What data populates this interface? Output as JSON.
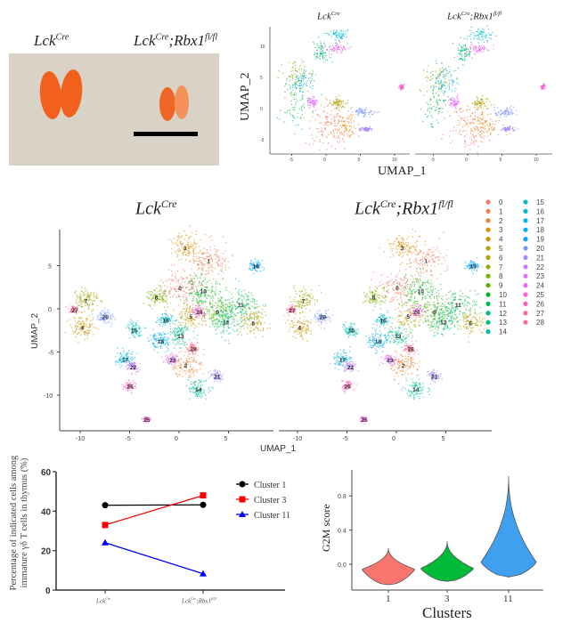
{
  "photo": {
    "label_left": {
      "base": "Lck",
      "sup": "Cre"
    },
    "label_right": {
      "base": "Lck",
      "sup": "Cre",
      "mid": ";Rbx1",
      "sup2": "fl/fl"
    },
    "background_color": "#d9d2c6",
    "organ_color": "#f2601d"
  },
  "chart_data": [
    {
      "type": "scatter",
      "panel": "top-umap",
      "facets": [
        {
          "base": "Lck",
          "sup": "Cre"
        },
        {
          "base": "Lck",
          "sup": "Cre",
          "mid": ";Rbx1",
          "sup2": "fl/fl"
        }
      ],
      "xlabel": "UMAP_1",
      "ylabel": "UMAP_2",
      "xticks": [
        "-5",
        "0",
        "5",
        "10"
      ],
      "yticks": [
        "-5",
        "0",
        "5",
        "10"
      ],
      "xlim": [
        -8,
        12
      ],
      "ylim": [
        -7,
        13.5
      ],
      "groups": [
        {
          "x": -4.5,
          "y": 4.8,
          "sx": 1.2,
          "sy": 1.4,
          "color": "#7CAE00"
        },
        {
          "x": -3.5,
          "y": 4.5,
          "sx": 1.0,
          "sy": 1.2,
          "color": "#00B0F6"
        },
        {
          "x": -4.5,
          "y": 0.5,
          "sx": 1.0,
          "sy": 1.8,
          "color": "#00BB4E"
        },
        {
          "x": 0.5,
          "y": -1.3,
          "sx": 1.6,
          "sy": 1.0,
          "color": "#F27D52"
        },
        {
          "x": 0.5,
          "y": -4.2,
          "sx": 1.6,
          "sy": 1.0,
          "color": "#F8766D"
        },
        {
          "x": 2.8,
          "y": -2.8,
          "sx": 1.0,
          "sy": 1.0,
          "color": "#DE8C00"
        },
        {
          "x": 1.8,
          "y": 0.8,
          "sx": 0.6,
          "sy": 0.5,
          "color": "#AEA200"
        },
        {
          "x": 5.5,
          "y": -0.6,
          "sx": 0.8,
          "sy": 0.4,
          "color": "#7997FF"
        },
        {
          "x": -2.0,
          "y": 1.0,
          "sx": 0.4,
          "sy": 0.4,
          "color": "#DF70F8"
        },
        {
          "x": 1.3,
          "y": 9.6,
          "sx": 0.9,
          "sy": 0.4,
          "color": "#F066EA"
        },
        {
          "x": -0.5,
          "y": 9.0,
          "sx": 0.6,
          "sy": 0.9,
          "color": "#00BE6C"
        },
        {
          "x": 1.8,
          "y": 11.8,
          "sx": 0.9,
          "sy": 0.6,
          "color": "#00BDD0"
        },
        {
          "x": 11.0,
          "y": 3.5,
          "sx": 0.15,
          "sy": 0.2,
          "color": "#FB61D7"
        },
        {
          "x": 5.8,
          "y": -3.3,
          "sx": 0.5,
          "sy": 0.2,
          "color": "#A58AFF"
        }
      ]
    },
    {
      "type": "scatter",
      "panel": "middle-umap",
      "facets": [
        {
          "base": "Lck",
          "sup": "Cre"
        },
        {
          "base": "Lck",
          "sup": "Cre",
          "mid": ";Rbx1",
          "sup2": "fl/fl"
        }
      ],
      "xlabel": "UMAP_1",
      "ylabel": "UMAP_2",
      "xticks": [
        "-10",
        "-5",
        "0",
        "5"
      ],
      "yticks": [
        "5",
        "0",
        "-5",
        "-10"
      ],
      "xlim": [
        -12,
        9.5
      ],
      "ylim": [
        -14,
        9.5
      ],
      "legend_placement": "right",
      "clusters": [
        {
          "label": "0",
          "color": "#F8766D",
          "x": 0.2,
          "y": 2.5,
          "s": 1.3
        },
        {
          "label": "1",
          "color": "#F27D52",
          "x": 3.1,
          "y": 5.6,
          "s": 1.2
        },
        {
          "label": "2",
          "color": "#EA8331",
          "x": 0.8,
          "y": -6.5,
          "s": 1.0
        },
        {
          "label": "3",
          "color": "#DE8C00",
          "x": 0.7,
          "y": 7.1,
          "s": 1.0
        },
        {
          "label": "4",
          "color": "#D09400",
          "x": -9.7,
          "y": -2.1,
          "s": 0.8
        },
        {
          "label": "5",
          "color": "#C09B00",
          "x": 1.3,
          "y": -0.8,
          "s": 0.9
        },
        {
          "label": "6",
          "color": "#AEA200",
          "x": 7.6,
          "y": -1.6,
          "s": 0.9
        },
        {
          "label": "7",
          "color": "#99A800",
          "x": -9.3,
          "y": 1.0,
          "s": 0.8
        },
        {
          "label": "8",
          "color": "#7CAE00",
          "x": -2.2,
          "y": 1.4,
          "s": 0.7
        },
        {
          "label": "9",
          "color": "#53B400",
          "x": 4.0,
          "y": -0.3,
          "s": 1.0
        },
        {
          "label": "10",
          "color": "#00B81F",
          "x": 2.4,
          "y": 2.1,
          "s": 1.2
        },
        {
          "label": "11",
          "color": "#00BB4E",
          "x": 6.2,
          "y": 0.5,
          "s": 1.2
        },
        {
          "label": "12",
          "color": "#00BE6C",
          "x": 4.7,
          "y": -1.5,
          "s": 1.0
        },
        {
          "label": "13",
          "color": "#00C086",
          "x": 0.1,
          "y": -3.1,
          "s": 0.8
        },
        {
          "label": "14",
          "color": "#00C19F",
          "x": 1.9,
          "y": -9.3,
          "s": 0.7
        },
        {
          "label": "15",
          "color": "#00C0B8",
          "x": -4.6,
          "y": -2.4,
          "s": 0.5
        },
        {
          "label": "16",
          "color": "#00BDD0",
          "x": -1.4,
          "y": -1.3,
          "s": 0.5
        },
        {
          "label": "17",
          "color": "#00B8E5",
          "x": -5.5,
          "y": -5.8,
          "s": 0.6
        },
        {
          "label": "18",
          "color": "#00B0F6",
          "x": -1.9,
          "y": -3.7,
          "s": 0.7
        },
        {
          "label": "19",
          "color": "#00A5FF",
          "x": 7.7,
          "y": 5.0,
          "s": 0.4
        },
        {
          "label": "20",
          "color": "#7997FF",
          "x": -7.5,
          "y": -0.9,
          "s": 0.5
        },
        {
          "label": "21",
          "color": "#A58AFF",
          "x": 3.8,
          "y": -7.8,
          "s": 0.4
        },
        {
          "label": "22",
          "color": "#C77CFF",
          "x": -4.7,
          "y": -6.7,
          "s": 0.4
        },
        {
          "label": "23",
          "color": "#DF70F8",
          "x": -0.7,
          "y": -5.9,
          "s": 0.4
        },
        {
          "label": "24",
          "color": "#F066EA",
          "x": 2.0,
          "y": -0.3,
          "s": 0.4
        },
        {
          "label": "25",
          "color": "#FB61D7",
          "x": -3.3,
          "y": -12.8,
          "s": 0.2
        },
        {
          "label": "26",
          "color": "#FF62BC",
          "x": -5.0,
          "y": -8.9,
          "s": 0.4
        },
        {
          "label": "27",
          "color": "#FF689F",
          "x": -10.6,
          "y": -0.1,
          "s": 0.3
        },
        {
          "label": "28",
          "color": "#FF6C91",
          "x": 1.4,
          "y": -4.6,
          "s": 0.4
        }
      ]
    },
    {
      "type": "line",
      "panel": "cluster-percentage",
      "ylabel": [
        "Percentage of indicated cells among",
        "immature γδ T cells in thymus (%)"
      ],
      "categories": [
        {
          "base": "Lck",
          "sup": "Cre"
        },
        {
          "base": "Lck",
          "sup": "Cre",
          "mid": ";Rbx1",
          "sup2": "fl/fl"
        }
      ],
      "ylim": [
        0,
        60
      ],
      "yticks": [
        "0",
        "20",
        "40",
        "60"
      ],
      "legend_placement": "right",
      "series": [
        {
          "name": "Cluster 1",
          "values": [
            43,
            43.2
          ],
          "color": "#000000",
          "marker": "circle"
        },
        {
          "name": "Cluster 3",
          "values": [
            33,
            48
          ],
          "color": "#ff0000",
          "marker": "square"
        },
        {
          "name": "Cluster 11",
          "values": [
            24,
            8.3
          ],
          "color": "#0000ff",
          "marker": "triangle"
        }
      ]
    },
    {
      "type": "violin",
      "panel": "g2m-score",
      "xlabel": "Clusters",
      "ylabel": "G2M score",
      "ylim": [
        -0.3,
        1.1
      ],
      "yticks": [
        "0.0",
        "0.4",
        "0.8"
      ],
      "violins": [
        {
          "category": "1",
          "min": -0.24,
          "max": 0.19,
          "mode": -0.06,
          "color": "#F8766D"
        },
        {
          "category": "3",
          "min": -0.2,
          "max": 0.27,
          "mode": -0.05,
          "color": "#00BA38"
        },
        {
          "category": "11",
          "min": -0.15,
          "max": 1.03,
          "mode": 0.02,
          "color": "#3fa0f0"
        }
      ]
    }
  ]
}
